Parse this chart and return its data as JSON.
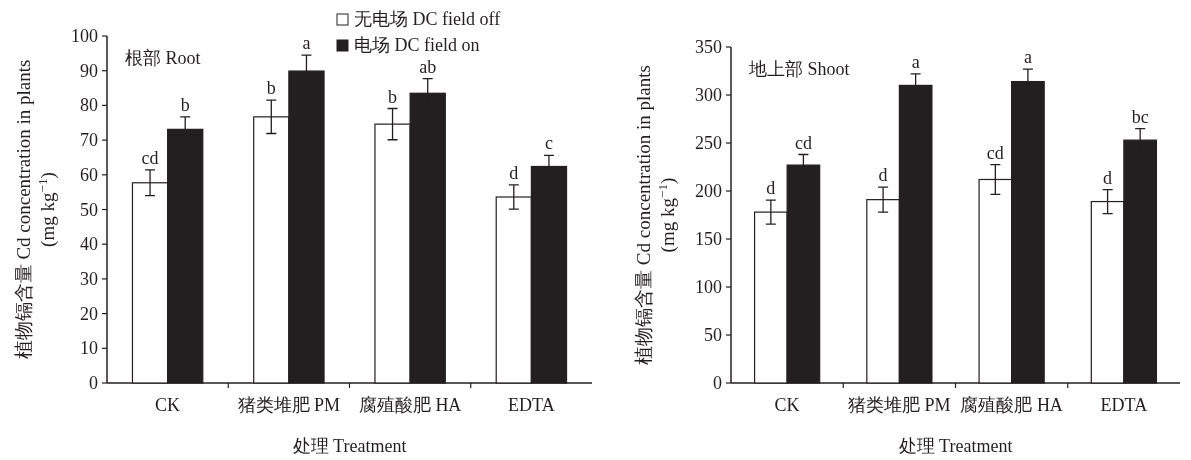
{
  "chart_data": [
    {
      "type": "bar",
      "categories": [
        "CK",
        "猪类堆肥 PM",
        "腐殖酸肥 HA",
        "EDTA"
      ],
      "xlabel": "处理 Treatment",
      "ylabel": "植物镉含量 Cd concentration in plants\n(mg kg$^{−1}$)",
      "ylim": [
        0,
        100
      ],
      "yticks": [
        0,
        10,
        20,
        30,
        40,
        50,
        60,
        70,
        80,
        90,
        100
      ],
      "legend": "top right",
      "annotations": [
        "根部 Root"
      ],
      "series": [
        {
          "name": "无电场 DC field off",
          "color": "#ffffff",
          "values": [
            57.7,
            76.7,
            74.6,
            53.6
          ],
          "errors": [
            3.7,
            4.8,
            4.5,
            3.5
          ],
          "value_labels": [
            "cd",
            "b",
            "b",
            "d"
          ]
        },
        {
          "name": "电场 DC field on",
          "color": "#231f20",
          "values": [
            73.1,
            89.9,
            83.5,
            62.4
          ],
          "errors": [
            3.6,
            4.6,
            4.2,
            3.2
          ],
          "value_labels": [
            "b",
            "a",
            "ab",
            "c"
          ]
        }
      ]
    },
    {
      "type": "bar",
      "categories": [
        "CK",
        "猪类堆肥 PM",
        "腐殖酸肥 HA",
        "EDTA"
      ],
      "xlabel": "处理 Treatment",
      "ylabel": "植物镉含量 Cd concentration in plants\n(mg kg$^{−1}$)",
      "ylim": [
        0,
        350
      ],
      "yticks": [
        0,
        50,
        100,
        150,
        200,
        250,
        300,
        350
      ],
      "annotations": [
        "地上部 Shoot"
      ],
      "series": [
        {
          "color": "#ffffff",
          "values": [
            178,
            191,
            212,
            189
          ],
          "errors": [
            12.5,
            13,
            15.5,
            12.5
          ],
          "value_labels": [
            "d",
            "d",
            "cd",
            "d"
          ]
        },
        {
          "color": "#231f20",
          "values": [
            227,
            310,
            314,
            253
          ],
          "errors": [
            11,
            12,
            13,
            12
          ],
          "value_labels": [
            "cd",
            "a",
            "a",
            "bc"
          ]
        }
      ]
    }
  ]
}
